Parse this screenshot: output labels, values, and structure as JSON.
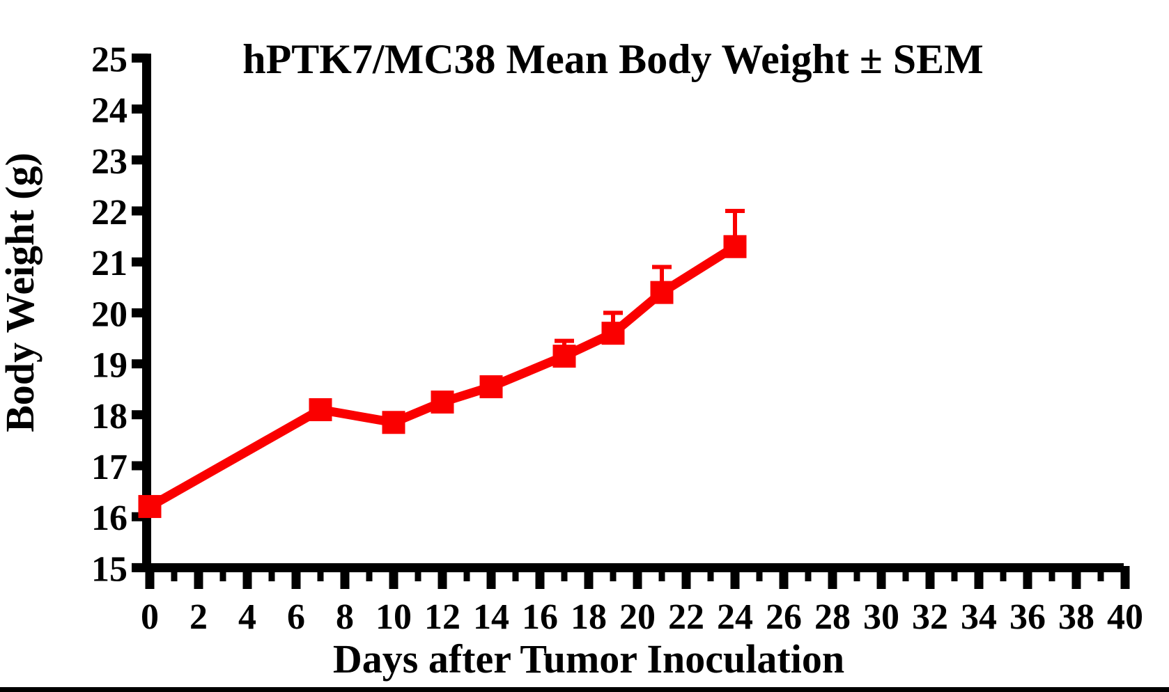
{
  "figure": {
    "background_color": "#ffffff",
    "bottom_bar_color": "#000000"
  },
  "chart_data": {
    "type": "line",
    "title": "hPTK7/MC38 Mean Body Weight ± SEM",
    "xlabel": "Days after Tumor Inoculation",
    "ylabel": "Body Weight (g)",
    "xlim": [
      0,
      40
    ],
    "ylim": [
      15,
      25
    ],
    "x_major_tick_step": 2,
    "x_minor_tick_step": 1,
    "y_tick_step": 1,
    "x_tick_labels": [
      "0",
      "2",
      "4",
      "6",
      "8",
      "10",
      "12",
      "14",
      "16",
      "18",
      "20",
      "22",
      "24",
      "26",
      "28",
      "30",
      "32",
      "34",
      "36",
      "38",
      "40"
    ],
    "y_tick_labels": [
      "15",
      "16",
      "17",
      "18",
      "19",
      "20",
      "21",
      "22",
      "23",
      "24",
      "25"
    ],
    "grid": false,
    "legend_position": "none",
    "error_bars": "upper SEM only",
    "series": [
      {
        "name": "hPTK7/MC38 mean body weight",
        "color": "#fa0000",
        "marker": "square",
        "x": [
          0,
          7,
          10,
          12,
          14,
          17,
          19,
          21,
          24
        ],
        "y": [
          16.2,
          18.1,
          17.85,
          18.25,
          18.55,
          19.15,
          19.6,
          20.4,
          21.3
        ],
        "sem_upper": [
          0,
          0,
          0,
          0,
          0,
          0.3,
          0.4,
          0.5,
          0.7
        ]
      }
    ],
    "axis_color": "#000000"
  }
}
